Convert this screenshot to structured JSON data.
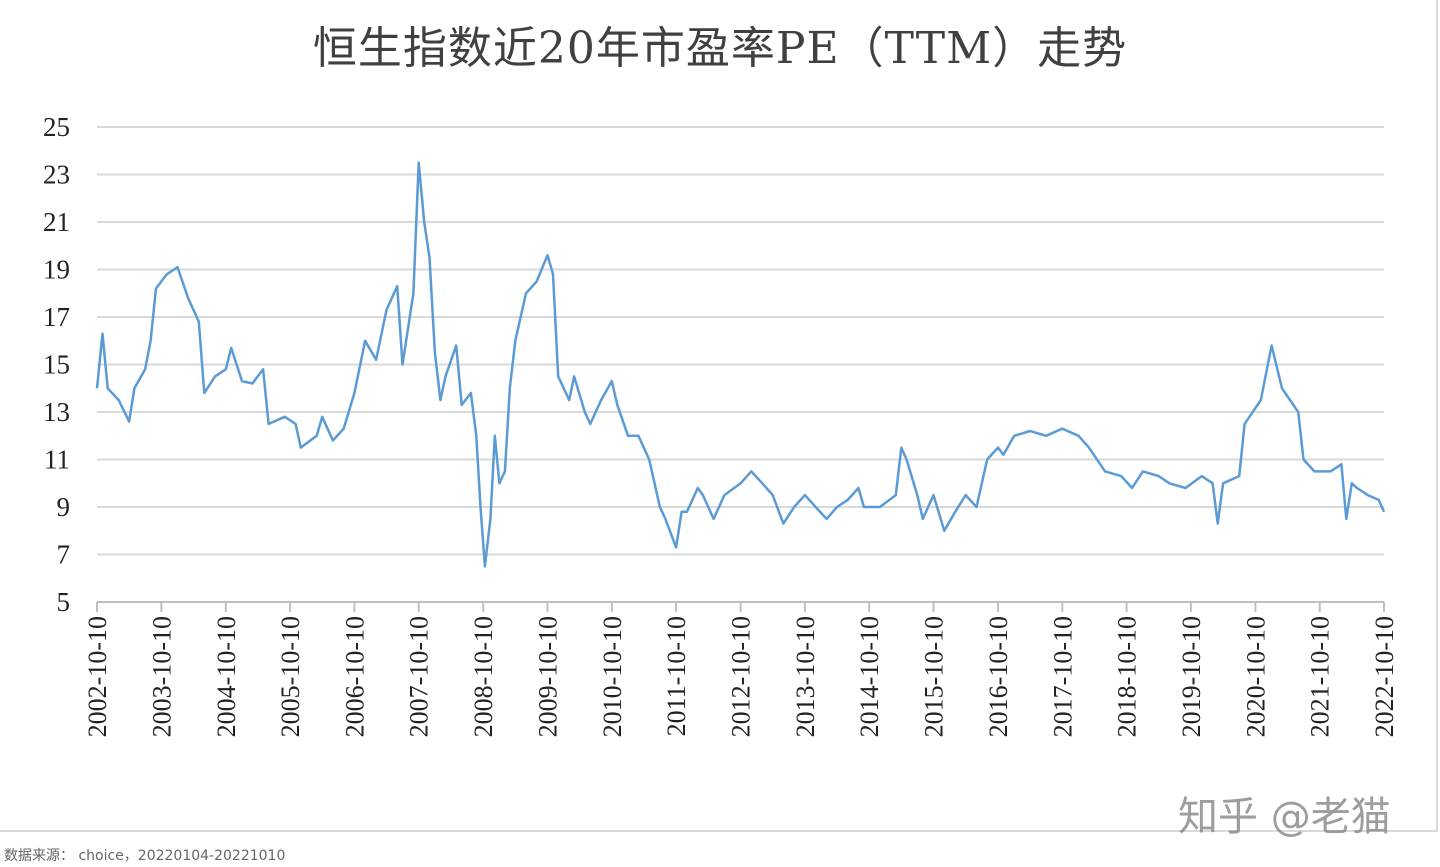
{
  "chart_data": {
    "type": "line",
    "title": "恒生指数近20年市盈率PE（TTM）走势",
    "xlabel": "",
    "ylabel": "",
    "ylim": [
      5,
      25
    ],
    "yticks": [
      "5",
      "7",
      "9",
      "11",
      "13",
      "15",
      "17",
      "19",
      "21",
      "23",
      "25"
    ],
    "xlim": [
      "2002-10-10",
      "2022-10-10"
    ],
    "xticks": [
      "2002-10-10",
      "2003-10-10",
      "2004-10-10",
      "2005-10-10",
      "2006-10-10",
      "2007-10-10",
      "2008-10-10",
      "2009-10-10",
      "2010-10-10",
      "2011-10-10",
      "2012-10-10",
      "2013-10-10",
      "2014-10-10",
      "2015-10-10",
      "2016-10-10",
      "2017-10-10",
      "2018-10-10",
      "2019-10-10",
      "2020-10-10",
      "2021-10-10",
      "2022-10-10"
    ],
    "grid": "horizontal",
    "legend": "none",
    "line_color": "#5b9bd5",
    "series": [
      {
        "points": [
          [
            "2002-10-10",
            14.0
          ],
          [
            "2002-11-10",
            16.3
          ],
          [
            "2002-12-10",
            14.0
          ],
          [
            "2003-02-10",
            13.5
          ],
          [
            "2003-04-10",
            12.6
          ],
          [
            "2003-05-10",
            14.0
          ],
          [
            "2003-07-10",
            14.8
          ],
          [
            "2003-08-10",
            16.0
          ],
          [
            "2003-09-10",
            18.2
          ],
          [
            "2003-11-10",
            18.8
          ],
          [
            "2004-01-10",
            19.1
          ],
          [
            "2004-03-10",
            17.8
          ],
          [
            "2004-05-10",
            16.8
          ],
          [
            "2004-06-10",
            13.8
          ],
          [
            "2004-08-10",
            14.5
          ],
          [
            "2004-10-10",
            14.8
          ],
          [
            "2004-11-10",
            15.7
          ],
          [
            "2005-01-10",
            14.3
          ],
          [
            "2005-03-10",
            14.2
          ],
          [
            "2005-05-10",
            14.8
          ],
          [
            "2005-06-10",
            12.5
          ],
          [
            "2005-09-10",
            12.8
          ],
          [
            "2005-11-10",
            12.5
          ],
          [
            "2005-12-10",
            11.5
          ],
          [
            "2006-03-10",
            12.0
          ],
          [
            "2006-04-10",
            12.8
          ],
          [
            "2006-06-10",
            11.8
          ],
          [
            "2006-08-10",
            12.3
          ],
          [
            "2006-10-10",
            13.8
          ],
          [
            "2006-12-10",
            16.0
          ],
          [
            "2007-02-10",
            15.2
          ],
          [
            "2007-04-10",
            17.3
          ],
          [
            "2007-06-10",
            18.3
          ],
          [
            "2007-07-10",
            15.0
          ],
          [
            "2007-09-10",
            18.0
          ],
          [
            "2007-10-10",
            23.5
          ],
          [
            "2007-11-10",
            21.0
          ],
          [
            "2007-12-10",
            19.5
          ],
          [
            "2008-01-10",
            15.5
          ],
          [
            "2008-02-10",
            13.5
          ],
          [
            "2008-03-10",
            14.5
          ],
          [
            "2008-05-10",
            15.8
          ],
          [
            "2008-06-10",
            13.3
          ],
          [
            "2008-08-01",
            13.8
          ],
          [
            "2008-09-01",
            12.0
          ],
          [
            "2008-09-25",
            9.0
          ],
          [
            "2008-10-20",
            6.5
          ],
          [
            "2008-11-20",
            8.5
          ],
          [
            "2008-12-15",
            12.0
          ],
          [
            "2009-01-10",
            10.0
          ],
          [
            "2009-02-10",
            10.5
          ],
          [
            "2009-03-10",
            14.0
          ],
          [
            "2009-04-10",
            16.0
          ],
          [
            "2009-06-10",
            18.0
          ],
          [
            "2009-08-10",
            18.5
          ],
          [
            "2009-10-10",
            19.6
          ],
          [
            "2009-11-10",
            18.8
          ],
          [
            "2009-12-10",
            14.5
          ],
          [
            "2010-02-10",
            13.5
          ],
          [
            "2010-03-10",
            14.5
          ],
          [
            "2010-05-10",
            13.0
          ],
          [
            "2010-06-10",
            12.5
          ],
          [
            "2010-08-10",
            13.5
          ],
          [
            "2010-10-10",
            14.3
          ],
          [
            "2010-11-10",
            13.3
          ],
          [
            "2011-01-10",
            12.0
          ],
          [
            "2011-03-10",
            12.0
          ],
          [
            "2011-05-10",
            11.0
          ],
          [
            "2011-07-10",
            9.0
          ],
          [
            "2011-08-10",
            8.5
          ],
          [
            "2011-10-10",
            7.3
          ],
          [
            "2011-11-10",
            8.8
          ],
          [
            "2011-12-10",
            8.8
          ],
          [
            "2012-02-10",
            9.8
          ],
          [
            "2012-03-10",
            9.5
          ],
          [
            "2012-05-10",
            8.5
          ],
          [
            "2012-07-10",
            9.5
          ],
          [
            "2012-10-10",
            10.0
          ],
          [
            "2012-12-10",
            10.5
          ],
          [
            "2013-02-10",
            10.0
          ],
          [
            "2013-04-10",
            9.5
          ],
          [
            "2013-06-10",
            8.3
          ],
          [
            "2013-08-10",
            9.0
          ],
          [
            "2013-10-10",
            9.5
          ],
          [
            "2013-12-10",
            9.0
          ],
          [
            "2014-02-10",
            8.5
          ],
          [
            "2014-04-10",
            9.0
          ],
          [
            "2014-06-10",
            9.3
          ],
          [
            "2014-08-10",
            9.8
          ],
          [
            "2014-09-10",
            9.0
          ],
          [
            "2014-12-10",
            9.0
          ],
          [
            "2015-03-10",
            9.5
          ],
          [
            "2015-04-10",
            11.5
          ],
          [
            "2015-05-10",
            11.0
          ],
          [
            "2015-07-10",
            9.5
          ],
          [
            "2015-08-10",
            8.5
          ],
          [
            "2015-10-10",
            9.5
          ],
          [
            "2015-12-10",
            8.0
          ],
          [
            "2016-02-10",
            8.8
          ],
          [
            "2016-04-10",
            9.5
          ],
          [
            "2016-06-10",
            9.0
          ],
          [
            "2016-08-10",
            11.0
          ],
          [
            "2016-10-10",
            11.5
          ],
          [
            "2016-11-10",
            11.2
          ],
          [
            "2017-01-10",
            12.0
          ],
          [
            "2017-04-10",
            12.2
          ],
          [
            "2017-07-10",
            12.0
          ],
          [
            "2017-10-10",
            12.3
          ],
          [
            "2018-01-10",
            12.0
          ],
          [
            "2018-03-10",
            11.5
          ],
          [
            "2018-06-10",
            10.5
          ],
          [
            "2018-09-10",
            10.3
          ],
          [
            "2018-11-10",
            9.8
          ],
          [
            "2019-01-10",
            10.5
          ],
          [
            "2019-04-10",
            10.3
          ],
          [
            "2019-06-10",
            10.0
          ],
          [
            "2019-09-10",
            9.8
          ],
          [
            "2019-12-10",
            10.3
          ],
          [
            "2020-02-10",
            10.0
          ],
          [
            "2020-03-10",
            8.3
          ],
          [
            "2020-04-10",
            10.0
          ],
          [
            "2020-07-10",
            10.3
          ],
          [
            "2020-08-10",
            12.5
          ],
          [
            "2020-11-10",
            13.5
          ],
          [
            "2021-01-10",
            15.8
          ],
          [
            "2021-03-10",
            14.0
          ],
          [
            "2021-06-10",
            13.0
          ],
          [
            "2021-07-10",
            11.0
          ],
          [
            "2021-09-10",
            10.5
          ],
          [
            "2021-12-10",
            10.5
          ],
          [
            "2022-02-10",
            10.8
          ],
          [
            "2022-03-10",
            8.5
          ],
          [
            "2022-04-10",
            10.0
          ],
          [
            "2022-05-10",
            9.8
          ],
          [
            "2022-07-10",
            9.5
          ],
          [
            "2022-09-10",
            9.3
          ],
          [
            "2022-10-10",
            8.8
          ]
        ]
      }
    ]
  },
  "source_note": "数据来源： choice，20220104-20221010",
  "watermark": "知乎 @老猫"
}
